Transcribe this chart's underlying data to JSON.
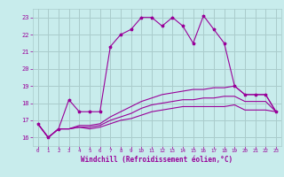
{
  "xlabel": "Windchill (Refroidissement éolien,°C)",
  "ylabel": "",
  "background_color": "#c8ecec",
  "grid_color": "#aacccc",
  "line_color": "#990099",
  "x_ticks": [
    0,
    1,
    2,
    3,
    4,
    5,
    6,
    7,
    8,
    9,
    10,
    11,
    12,
    13,
    14,
    15,
    16,
    17,
    18,
    19,
    20,
    21,
    22,
    23
  ],
  "y_ticks": [
    16,
    17,
    18,
    19,
    20,
    21,
    22,
    23
  ],
  "xlim": [
    -0.5,
    23.5
  ],
  "ylim": [
    15.5,
    23.5
  ],
  "line1_x": [
    0,
    1,
    2,
    3,
    4,
    5,
    6,
    7,
    8,
    9,
    10,
    11,
    12,
    13,
    14,
    15,
    16,
    17,
    18,
    19,
    20,
    21,
    22,
    23
  ],
  "line1_y": [
    16.8,
    16.0,
    16.5,
    18.2,
    17.5,
    17.5,
    17.5,
    21.3,
    22.0,
    22.3,
    23.0,
    23.0,
    22.5,
    23.0,
    22.5,
    21.5,
    23.1,
    22.3,
    21.5,
    19.0,
    18.5,
    18.5,
    18.5,
    17.5
  ],
  "line2_x": [
    0,
    1,
    2,
    3,
    4,
    5,
    6,
    7,
    8,
    9,
    10,
    11,
    12,
    13,
    14,
    15,
    16,
    17,
    18,
    19,
    20,
    21,
    22,
    23
  ],
  "line2_y": [
    16.8,
    16.0,
    16.5,
    16.5,
    16.7,
    16.7,
    16.8,
    17.2,
    17.5,
    17.8,
    18.1,
    18.3,
    18.5,
    18.6,
    18.7,
    18.8,
    18.8,
    18.9,
    18.9,
    19.0,
    18.5,
    18.5,
    18.5,
    17.5
  ],
  "line3_x": [
    0,
    1,
    2,
    3,
    4,
    5,
    6,
    7,
    8,
    9,
    10,
    11,
    12,
    13,
    14,
    15,
    16,
    17,
    18,
    19,
    20,
    21,
    22,
    23
  ],
  "line3_y": [
    16.8,
    16.0,
    16.5,
    16.5,
    16.6,
    16.6,
    16.7,
    17.0,
    17.2,
    17.4,
    17.7,
    17.9,
    18.0,
    18.1,
    18.2,
    18.2,
    18.3,
    18.3,
    18.4,
    18.4,
    18.1,
    18.1,
    18.1,
    17.5
  ],
  "line4_x": [
    0,
    1,
    2,
    3,
    4,
    5,
    6,
    7,
    8,
    9,
    10,
    11,
    12,
    13,
    14,
    15,
    16,
    17,
    18,
    19,
    20,
    21,
    22,
    23
  ],
  "line4_y": [
    16.8,
    16.0,
    16.5,
    16.5,
    16.6,
    16.5,
    16.6,
    16.8,
    17.0,
    17.1,
    17.3,
    17.5,
    17.6,
    17.7,
    17.8,
    17.8,
    17.8,
    17.8,
    17.8,
    17.9,
    17.6,
    17.6,
    17.6,
    17.5
  ],
  "xlabel_fontsize": 5.5,
  "xtick_fontsize": 4.2,
  "ytick_fontsize": 5.0,
  "linewidth": 0.8,
  "markersize": 2.5
}
